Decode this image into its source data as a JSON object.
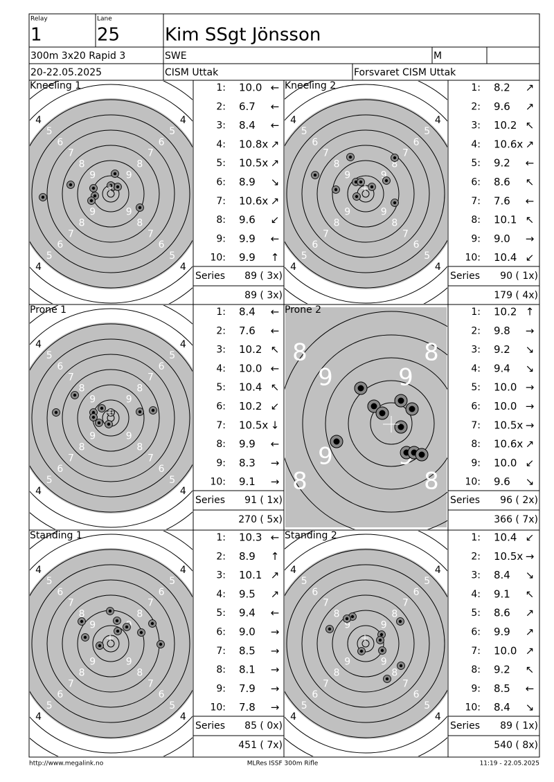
{
  "header": {
    "relay_label": "Relay",
    "relay": "1",
    "lane_label": "Lane",
    "lane": "25",
    "name": "Kim SSgt Jönsson",
    "event": "300m 3x20 Rapid 3",
    "nation": "SWE",
    "gender": "M",
    "date": "20-22.05.2025",
    "club": "CISM Uttak",
    "team": "Forsvaret CISM Uttak"
  },
  "ring_labels": [
    "4",
    "5",
    "6",
    "7",
    "8",
    "9"
  ],
  "shot_labels": [
    "1:",
    "2:",
    "3:",
    "4:",
    "5:",
    "6:",
    "7:",
    "8:",
    "9:",
    "10:"
  ],
  "series_label": "Series",
  "panels": [
    {
      "title": "Kneeling 1",
      "zoomed": false,
      "series": "89 ( 3x)",
      "total": "89 ( 3x)",
      "shots": [
        {
          "score": "10.0",
          "dir": "←"
        },
        {
          "score": "6.7",
          "dir": "←"
        },
        {
          "score": "8.4",
          "dir": "←"
        },
        {
          "score": "10.8x",
          "dir": "↗"
        },
        {
          "score": "10.5x",
          "dir": "↗"
        },
        {
          "score": "8.9",
          "dir": "↘"
        },
        {
          "score": "10.6x",
          "dir": "↗"
        },
        {
          "score": "9.6",
          "dir": "↙"
        },
        {
          "score": "9.9",
          "dir": "←"
        },
        {
          "score": "9.9",
          "dir": "↑"
        }
      ]
    },
    {
      "title": "Kneeling 2",
      "zoomed": false,
      "series": "90 ( 1x)",
      "total": "179 ( 4x)",
      "shots": [
        {
          "score": "8.2",
          "dir": "↗"
        },
        {
          "score": "9.6",
          "dir": "↗"
        },
        {
          "score": "10.2",
          "dir": "↖"
        },
        {
          "score": "10.6x",
          "dir": "↗"
        },
        {
          "score": "9.2",
          "dir": "←"
        },
        {
          "score": "8.6",
          "dir": "↖"
        },
        {
          "score": "7.6",
          "dir": "←"
        },
        {
          "score": "10.1",
          "dir": "↖"
        },
        {
          "score": "9.0",
          "dir": "→"
        },
        {
          "score": "10.4",
          "dir": "↙"
        }
      ]
    },
    {
      "title": "Prone 1",
      "zoomed": false,
      "series": "91 ( 1x)",
      "total": "270 ( 5x)",
      "shots": [
        {
          "score": "8.4",
          "dir": "←"
        },
        {
          "score": "7.6",
          "dir": "←"
        },
        {
          "score": "10.2",
          "dir": "↖"
        },
        {
          "score": "10.0",
          "dir": "←"
        },
        {
          "score": "10.4",
          "dir": "↖"
        },
        {
          "score": "10.2",
          "dir": "↙"
        },
        {
          "score": "10.5x",
          "dir": "↓"
        },
        {
          "score": "9.9",
          "dir": "←"
        },
        {
          "score": "8.3",
          "dir": "→"
        },
        {
          "score": "9.1",
          "dir": "→"
        }
      ]
    },
    {
      "title": "Prone 2",
      "zoomed": true,
      "series": "96 ( 2x)",
      "total": "366 ( 7x)",
      "shots": [
        {
          "score": "10.2",
          "dir": "↑"
        },
        {
          "score": "9.8",
          "dir": "→"
        },
        {
          "score": "9.2",
          "dir": "↘"
        },
        {
          "score": "9.4",
          "dir": "↘"
        },
        {
          "score": "10.0",
          "dir": "→"
        },
        {
          "score": "10.0",
          "dir": "→"
        },
        {
          "score": "10.5x",
          "dir": "→"
        },
        {
          "score": "10.6x",
          "dir": "↗"
        },
        {
          "score": "10.0",
          "dir": "↙"
        },
        {
          "score": "9.6",
          "dir": "↘"
        }
      ]
    },
    {
      "title": "Standing 1",
      "zoomed": false,
      "series": "85 ( 0x)",
      "total": "451 ( 7x)",
      "shots": [
        {
          "score": "10.3",
          "dir": "←"
        },
        {
          "score": "8.9",
          "dir": "↑"
        },
        {
          "score": "10.1",
          "dir": "↗"
        },
        {
          "score": "9.5",
          "dir": "↗"
        },
        {
          "score": "9.4",
          "dir": "←"
        },
        {
          "score": "9.0",
          "dir": "→"
        },
        {
          "score": "8.5",
          "dir": "→"
        },
        {
          "score": "8.1",
          "dir": "→"
        },
        {
          "score": "7.9",
          "dir": "→"
        },
        {
          "score": "7.8",
          "dir": "→"
        }
      ]
    },
    {
      "title": "Standing 2",
      "zoomed": false,
      "series": "89 ( 1x)",
      "total": "540 ( 8x)",
      "shots": [
        {
          "score": "10.4",
          "dir": "↙"
        },
        {
          "score": "10.5x",
          "dir": "→"
        },
        {
          "score": "8.4",
          "dir": "↘"
        },
        {
          "score": "9.1",
          "dir": "↖"
        },
        {
          "score": "8.6",
          "dir": "↗"
        },
        {
          "score": "9.9",
          "dir": "↗"
        },
        {
          "score": "10.0",
          "dir": "↗"
        },
        {
          "score": "9.2",
          "dir": "↖"
        },
        {
          "score": "8.5",
          "dir": "←"
        },
        {
          "score": "8.4",
          "dir": "↘"
        }
      ]
    }
  ],
  "footer": {
    "left": "http://www.megalink.no",
    "center": "MLRes ISSF 300m Rifle",
    "right": "11:19 - 22.05.2025"
  }
}
